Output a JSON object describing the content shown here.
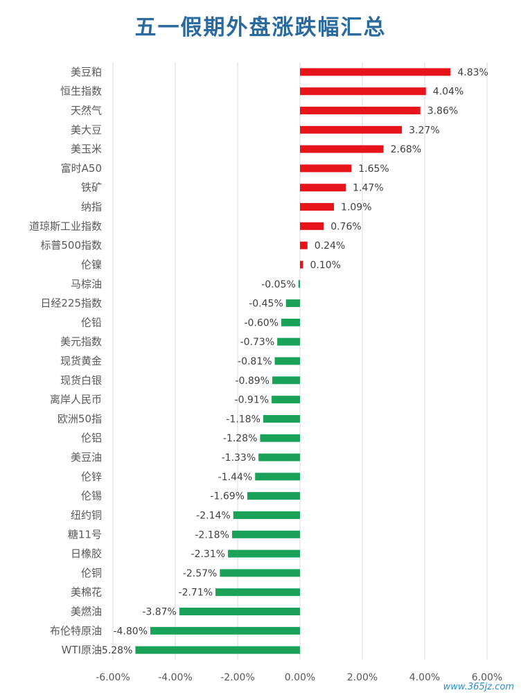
{
  "chart_data": {
    "type": "bar",
    "orientation": "horizontal",
    "title": "五一假期外盘涨跌幅汇总",
    "categories": [
      "美豆粕",
      "恒生指数",
      "天然气",
      "美大豆",
      "美玉米",
      "富时A50",
      "铁矿",
      "纳指",
      "道琼斯工业指数",
      "标普500指数",
      "伦镍",
      "马棕油",
      "日经225指数",
      "伦铅",
      "美元指数",
      "现货黄金",
      "现货白银",
      "离岸人民币",
      "欧洲50指",
      "伦铝",
      "美豆油",
      "伦锌",
      "伦锡",
      "纽约铜",
      "糖11号",
      "日橡胶",
      "伦铜",
      "美棉花",
      "美燃油",
      "布伦特原油",
      "WTI原油"
    ],
    "values": [
      4.83,
      4.04,
      3.86,
      3.27,
      2.68,
      1.65,
      1.47,
      1.09,
      0.76,
      0.24,
      0.1,
      -0.05,
      -0.45,
      -0.6,
      -0.73,
      -0.81,
      -0.89,
      -0.91,
      -1.18,
      -1.28,
      -1.33,
      -1.44,
      -1.69,
      -2.14,
      -2.18,
      -2.31,
      -2.57,
      -2.71,
      -3.87,
      -4.8,
      -5.28
    ],
    "value_labels": [
      "4.83%",
      "4.04%",
      "3.86%",
      "3.27%",
      "2.68%",
      "1.65%",
      "1.47%",
      "1.09%",
      "0.76%",
      "0.24%",
      "0.10%",
      "-0.05%",
      "-0.45%",
      "-0.60%",
      "-0.73%",
      "-0.81%",
      "-0.89%",
      "-0.91%",
      "-1.18%",
      "-1.28%",
      "-1.33%",
      "-1.44%",
      "-1.69%",
      "-2.14%",
      "-2.18%",
      "-2.31%",
      "-2.57%",
      "-2.71%",
      "-3.87%",
      "-4.80%",
      "-5.28%"
    ],
    "xlim": [
      -6,
      6
    ],
    "xticks": [
      -6,
      -4,
      -2,
      0,
      2,
      4,
      6
    ],
    "xtick_labels": [
      "-6.00%",
      "-4.00%",
      "-2.00%",
      "0.00%",
      "2.00%",
      "4.00%",
      "6.00%"
    ],
    "grid": "vertical",
    "legend": "none",
    "colors": {
      "positive": "#e8141b",
      "negative": "#1aa358",
      "grid": "#d9d9d9",
      "title": "#2a6a9e"
    }
  },
  "watermark": "www.365jz.com"
}
